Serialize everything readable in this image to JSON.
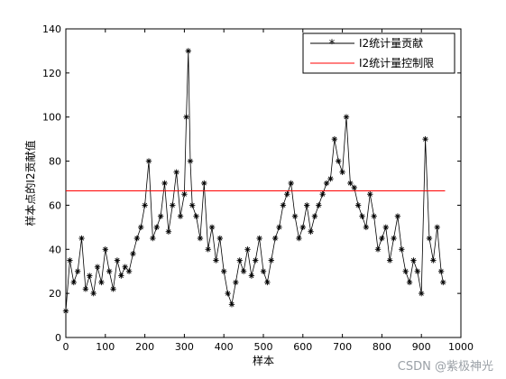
{
  "watermark": "CSDN @紫极神光",
  "chart_data": {
    "type": "line",
    "xlabel": "样本",
    "ylabel": "样本点的I2贡献值",
    "xlim": [
      0,
      1000
    ],
    "ylim": [
      0,
      140
    ],
    "xticks": [
      0,
      100,
      200,
      300,
      400,
      500,
      600,
      700,
      800,
      900,
      1000
    ],
    "yticks": [
      0,
      20,
      40,
      60,
      80,
      100,
      120,
      140
    ],
    "legend_position": "top-right",
    "colors": {
      "contribution": "#000000",
      "limit": "#ff0000"
    },
    "series": [
      {
        "name": "I2统计量贡献",
        "marker": "*",
        "x": [
          0,
          10,
          20,
          30,
          40,
          50,
          60,
          70,
          80,
          90,
          100,
          110,
          120,
          130,
          140,
          150,
          160,
          170,
          180,
          190,
          200,
          210,
          220,
          230,
          240,
          250,
          260,
          270,
          280,
          290,
          300,
          305,
          310,
          315,
          320,
          330,
          340,
          350,
          360,
          370,
          380,
          390,
          400,
          410,
          420,
          430,
          440,
          450,
          460,
          470,
          480,
          490,
          500,
          510,
          520,
          530,
          540,
          550,
          560,
          570,
          580,
          590,
          600,
          610,
          620,
          630,
          640,
          650,
          660,
          670,
          680,
          690,
          700,
          710,
          720,
          730,
          740,
          750,
          760,
          770,
          780,
          790,
          800,
          810,
          820,
          830,
          840,
          850,
          860,
          870,
          880,
          890,
          900,
          910,
          920,
          930,
          940,
          950,
          955
        ],
        "y": [
          12,
          35,
          25,
          30,
          45,
          22,
          28,
          20,
          32,
          25,
          40,
          30,
          22,
          35,
          28,
          32,
          30,
          38,
          45,
          50,
          60,
          80,
          45,
          50,
          55,
          70,
          48,
          60,
          75,
          55,
          65,
          100,
          130,
          80,
          60,
          55,
          45,
          70,
          40,
          50,
          35,
          45,
          30,
          20,
          15,
          25,
          35,
          30,
          40,
          28,
          35,
          45,
          30,
          25,
          35,
          45,
          50,
          60,
          65,
          70,
          55,
          45,
          50,
          60,
          48,
          55,
          60,
          65,
          70,
          72,
          90,
          80,
          75,
          100,
          70,
          68,
          60,
          55,
          50,
          65,
          55,
          40,
          45,
          50,
          35,
          45,
          55,
          40,
          30,
          25,
          35,
          30,
          20,
          90,
          45,
          35,
          50,
          30,
          25
        ]
      },
      {
        "name": "I2统计量控制限",
        "x": [
          0,
          960
        ],
        "y": [
          66.5,
          66.5
        ]
      }
    ]
  }
}
